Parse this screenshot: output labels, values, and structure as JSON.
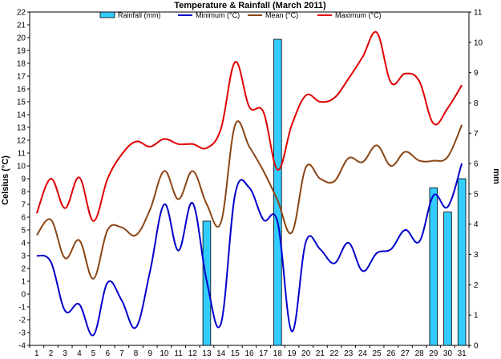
{
  "chart_data": {
    "type": "bar-line",
    "title": "Temperature & Rainfall (March 2011)",
    "ylabel_left": "Celsius (°C)",
    "ylabel_right": "mm",
    "x": [
      1,
      2,
      3,
      4,
      5,
      6,
      7,
      8,
      9,
      10,
      11,
      12,
      13,
      14,
      15,
      16,
      17,
      18,
      19,
      20,
      21,
      22,
      23,
      24,
      25,
      26,
      27,
      28,
      29,
      30,
      31
    ],
    "y_left_range": [
      -4,
      22
    ],
    "y_right_range": [
      0,
      11
    ],
    "legend_position": "top",
    "series": [
      {
        "name": "Rainfall (mm)",
        "kind": "bar",
        "axis": "right",
        "color": "#33ccff",
        "values": [
          0,
          0,
          0,
          0,
          0,
          0,
          0,
          0,
          0,
          0,
          0,
          0,
          4.1,
          0,
          0,
          0,
          0,
          10.1,
          0,
          0,
          0,
          0,
          0,
          0,
          0,
          0,
          0,
          0,
          5.2,
          4.4,
          5.5
        ]
      },
      {
        "name": "Minimum (°C)",
        "kind": "line",
        "axis": "left",
        "color": "#0000cc",
        "values": [
          3.0,
          2.5,
          -1.3,
          -0.8,
          -3.2,
          0.9,
          -0.5,
          -2.6,
          1.8,
          7.0,
          3.4,
          7.1,
          1.0,
          -2.3,
          7.8,
          8.3,
          5.8,
          5.6,
          -2.9,
          4.1,
          3.5,
          2.4,
          4.0,
          1.8,
          3.2,
          3.5,
          5.0,
          4.1,
          7.7,
          6.8,
          10.2
        ]
      },
      {
        "name": "Mean (°C)",
        "kind": "line",
        "axis": "left",
        "color": "#8b4513",
        "values": [
          4.6,
          5.8,
          2.8,
          4.2,
          1.2,
          5.0,
          5.2,
          4.6,
          6.6,
          9.6,
          7.4,
          9.6,
          7.0,
          5.6,
          13.2,
          11.5,
          9.6,
          7.3,
          4.8,
          9.9,
          9.0,
          8.8,
          10.6,
          10.3,
          11.6,
          10.0,
          11.1,
          10.4,
          10.4,
          10.7,
          13.2
        ]
      },
      {
        "name": "Maximum (°C)",
        "kind": "line",
        "axis": "left",
        "color": "#e00000",
        "values": [
          6.3,
          9.0,
          6.7,
          9.1,
          5.7,
          9.0,
          10.9,
          11.9,
          11.5,
          12.1,
          11.7,
          11.7,
          11.4,
          12.9,
          18.1,
          14.6,
          14.2,
          9.7,
          13.2,
          15.5,
          15.0,
          15.3,
          16.8,
          18.5,
          20.4,
          16.5,
          17.2,
          16.6,
          13.3,
          14.5,
          16.3
        ]
      }
    ]
  }
}
